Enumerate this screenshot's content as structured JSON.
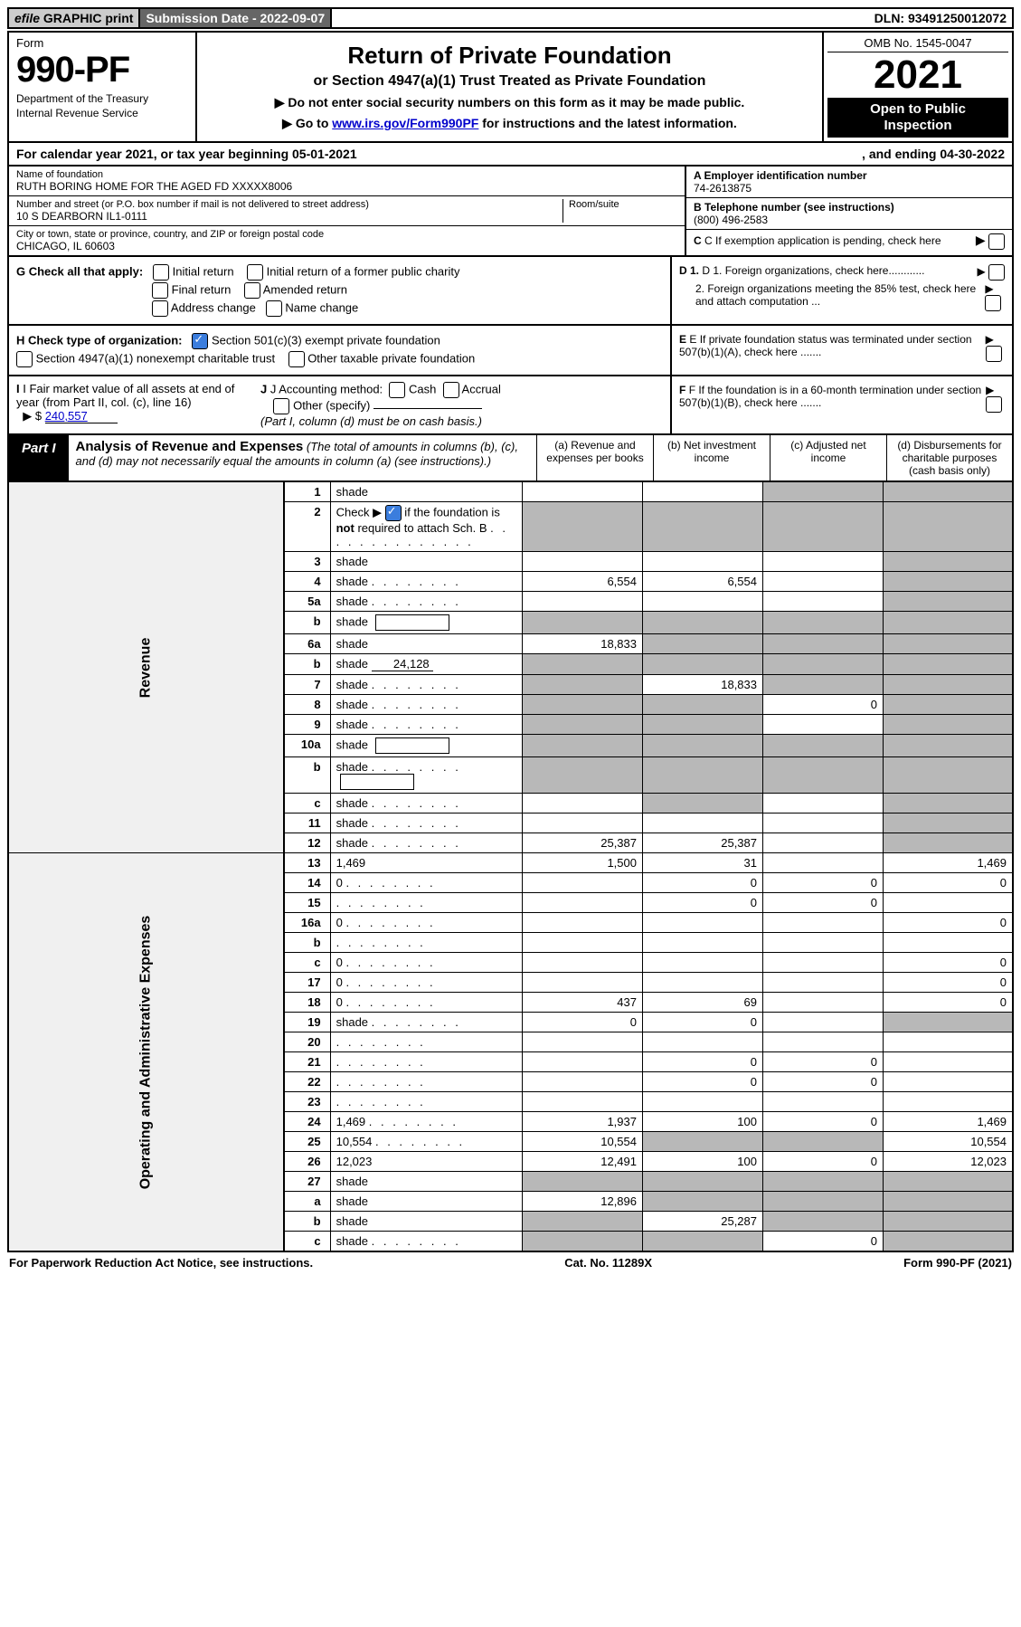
{
  "top_bar": {
    "efile_prefix": "efile",
    "efile_rest": " GRAPHIC print",
    "submission": "Submission Date - 2022-09-07",
    "dln": "DLN: 93491250012072"
  },
  "header": {
    "form_label": "Form",
    "form_number": "990-PF",
    "dept1": "Department of the Treasury",
    "dept2": "Internal Revenue Service",
    "title_main": "Return of Private Foundation",
    "title_sub": "or Section 4947(a)(1) Trust Treated as Private Foundation",
    "instr1_pre": "▶ Do not enter social security numbers on this form as it may be made public.",
    "instr2_pre": "▶ Go to ",
    "instr2_link": "www.irs.gov/Form990PF",
    "instr2_post": " for instructions and the latest information.",
    "omb": "OMB No. 1545-0047",
    "year": "2021",
    "open1": "Open to Public",
    "open2": "Inspection"
  },
  "calendar": {
    "left": "For calendar year 2021, or tax year beginning 05-01-2021",
    "right": ", and ending 04-30-2022"
  },
  "info": {
    "name_label": "Name of foundation",
    "name_value": "RUTH BORING HOME FOR THE AGED FD XXXXX8006",
    "street_label": "Number and street (or P.O. box number if mail is not delivered to street address)",
    "street_value": "10 S DEARBORN IL1-0111",
    "room_label": "Room/suite",
    "city_label": "City or town, state or province, country, and ZIP or foreign postal code",
    "city_value": "CHICAGO, IL  60603",
    "ein_label": "A Employer identification number",
    "ein_value": "74-2613875",
    "tel_label": "B Telephone number (see instructions)",
    "tel_value": "(800) 496-2583",
    "c_label": "C If exemption application is pending, check here",
    "d1": "D 1. Foreign organizations, check here............",
    "d2": "2. Foreign organizations meeting the 85% test, check here and attach computation ...",
    "e": "E  If private foundation status was terminated under section 507(b)(1)(A), check here .......",
    "f": "F  If the foundation is in a 60-month termination under section 507(b)(1)(B), check here .......",
    "g_label": "G Check all that apply:",
    "g_opts": [
      "Initial return",
      "Initial return of a former public charity",
      "Final return",
      "Amended return",
      "Address change",
      "Name change"
    ],
    "h_label": "H Check type of organization:",
    "h_opt1": "Section 501(c)(3) exempt private foundation",
    "h_opt2": "Section 4947(a)(1) nonexempt charitable trust",
    "h_opt3": "Other taxable private foundation",
    "i_label": "I Fair market value of all assets at end of year (from Part II, col. (c), line 16)",
    "i_arrow": "▶ $",
    "i_value": "240,557",
    "j_label": "J Accounting method:",
    "j_opts": [
      "Cash",
      "Accrual"
    ],
    "j_other": "Other (specify)",
    "j_note": "(Part I, column (d) must be on cash basis.)"
  },
  "part1": {
    "tab": "Part I",
    "title_bold": "Analysis of Revenue and Expenses",
    "title_rest": " (The total of amounts in columns (b), (c), and (d) may not necessarily equal the amounts in column (a) (see instructions).)",
    "cols": {
      "a": "(a)   Revenue and expenses per books",
      "b": "(b)   Net investment income",
      "c": "(c)   Adjusted net income",
      "d": "(d)   Disbursements for charitable purposes (cash basis only)"
    }
  },
  "rows": [
    {
      "n": "1",
      "d": "shade",
      "a": "",
      "b": "",
      "c": "shade"
    },
    {
      "n": "2",
      "d": "shade",
      "dots": true,
      "a": "shade",
      "b": "shade",
      "c": "shade",
      "hasCheck": true
    },
    {
      "n": "3",
      "d": "shade",
      "a": "",
      "b": "",
      "c": ""
    },
    {
      "n": "4",
      "d": "shade",
      "dots": true,
      "a": "6,554",
      "b": "6,554",
      "c": ""
    },
    {
      "n": "5a",
      "d": "shade",
      "dots": true,
      "a": "",
      "b": "",
      "c": ""
    },
    {
      "n": "b",
      "d": "shade",
      "box": true,
      "a": "shade",
      "b": "shade",
      "c": "shade"
    },
    {
      "n": "6a",
      "d": "shade",
      "a": "18,833",
      "b": "shade",
      "c": "shade"
    },
    {
      "n": "b",
      "d": "shade",
      "inline": "24,128",
      "a": "shade",
      "b": "shade",
      "c": "shade"
    },
    {
      "n": "7",
      "d": "shade",
      "dots": true,
      "a": "shade",
      "b": "18,833",
      "c": "shade"
    },
    {
      "n": "8",
      "d": "shade",
      "dots": true,
      "a": "shade",
      "b": "shade",
      "c": "0"
    },
    {
      "n": "9",
      "d": "shade",
      "dots": true,
      "a": "shade",
      "b": "shade",
      "c": ""
    },
    {
      "n": "10a",
      "d": "shade",
      "box": true,
      "a": "shade",
      "b": "shade",
      "c": "shade"
    },
    {
      "n": "b",
      "d": "shade",
      "dots": true,
      "box": true,
      "a": "shade",
      "b": "shade",
      "c": "shade"
    },
    {
      "n": "c",
      "d": "shade",
      "dots": true,
      "a": "",
      "b": "shade",
      "c": ""
    },
    {
      "n": "11",
      "d": "shade",
      "dots": true,
      "a": "",
      "b": "",
      "c": ""
    },
    {
      "n": "12",
      "d": "shade",
      "dots": true,
      "bold": true,
      "a": "25,387",
      "b": "25,387",
      "c": ""
    },
    {
      "n": "13",
      "d": "1,469",
      "a": "1,500",
      "b": "31",
      "c": ""
    },
    {
      "n": "14",
      "d": "0",
      "dots": true,
      "a": "",
      "b": "0",
      "c": "0"
    },
    {
      "n": "15",
      "d": "",
      "dots": true,
      "a": "",
      "b": "0",
      "c": "0"
    },
    {
      "n": "16a",
      "d": "0",
      "dots": true,
      "a": "",
      "b": "",
      "c": ""
    },
    {
      "n": "b",
      "d": "",
      "dots": true,
      "a": "",
      "b": "",
      "c": ""
    },
    {
      "n": "c",
      "d": "0",
      "dots": true,
      "a": "",
      "b": "",
      "c": ""
    },
    {
      "n": "17",
      "d": "0",
      "dots": true,
      "a": "",
      "b": "",
      "c": ""
    },
    {
      "n": "18",
      "d": "0",
      "dots": true,
      "a": "437",
      "b": "69",
      "c": ""
    },
    {
      "n": "19",
      "d": "shade",
      "dots": true,
      "a": "0",
      "b": "0",
      "c": ""
    },
    {
      "n": "20",
      "d": "",
      "dots": true,
      "a": "",
      "b": "",
      "c": ""
    },
    {
      "n": "21",
      "d": "",
      "dots": true,
      "a": "",
      "b": "0",
      "c": "0"
    },
    {
      "n": "22",
      "d": "",
      "dots": true,
      "a": "",
      "b": "0",
      "c": "0"
    },
    {
      "n": "23",
      "d": "",
      "dots": true,
      "a": "",
      "b": "",
      "c": ""
    },
    {
      "n": "24",
      "d": "1,469",
      "dots": true,
      "bold": true,
      "a": "1,937",
      "b": "100",
      "c": "0"
    },
    {
      "n": "25",
      "d": "10,554",
      "dots": true,
      "a": "10,554",
      "b": "shade",
      "c": "shade"
    },
    {
      "n": "26",
      "d": "12,023",
      "bold": true,
      "a": "12,491",
      "b": "100",
      "c": "0"
    },
    {
      "n": "27",
      "d": "shade",
      "a": "shade",
      "b": "shade",
      "c": "shade"
    },
    {
      "n": "a",
      "d": "shade",
      "bold": true,
      "a": "12,896",
      "b": "shade",
      "c": "shade"
    },
    {
      "n": "b",
      "d": "shade",
      "bold": true,
      "a": "shade",
      "b": "25,287",
      "c": "shade"
    },
    {
      "n": "c",
      "d": "shade",
      "dots": true,
      "bold": true,
      "a": "shade",
      "b": "shade",
      "c": "0"
    }
  ],
  "side_labels": {
    "revenue": "Revenue",
    "expenses": "Operating and Administrative Expenses"
  },
  "footer": {
    "left": "For Paperwork Reduction Act Notice, see instructions.",
    "center": "Cat. No. 11289X",
    "right": "Form 990-PF (2021)"
  },
  "colors": {
    "shaded": "#b8b8b8",
    "link": "#0000cc",
    "check_blue": "#3b7ddd"
  }
}
